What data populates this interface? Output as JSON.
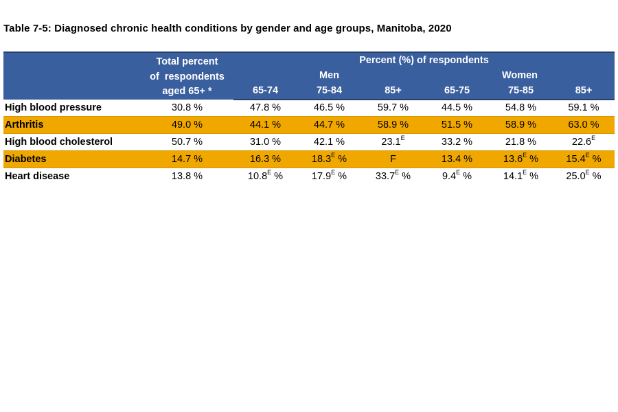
{
  "page_title": "Table 7-5: Diagnosed chronic health conditions by gender and age groups, Manitoba, 2020",
  "colors": {
    "header_blue": "#3A5F9E",
    "header_border_dark_blue": "#27416B",
    "highlight_orange": "#F0A800",
    "highlight_orange_border": "#D79600",
    "header_text": "#FFFFFF",
    "body_text": "#000000"
  },
  "table": {
    "header": {
      "total_lines": [
        "Total percent",
        "of  respondents",
        "aged 65+ *"
      ],
      "group_title": "Percent (%) of respondents",
      "men_label": "Men",
      "women_label": "Women",
      "ages": [
        "65-74",
        "75-84",
        "85+",
        "65-75",
        "75-85",
        "85+"
      ]
    },
    "rows": [
      {
        "condition": "High blood pressure",
        "highlight": false,
        "cells": [
          {
            "v": "30.8",
            "pct": true
          },
          {
            "v": "47.8",
            "pct": true
          },
          {
            "v": "46.5",
            "pct": true
          },
          {
            "v": "59.7",
            "pct": true
          },
          {
            "v": "44.5",
            "pct": true
          },
          {
            "v": "54.8",
            "pct": true
          },
          {
            "v": "59.1",
            "pct": true
          }
        ]
      },
      {
        "condition": "Arthritis",
        "highlight": true,
        "cells": [
          {
            "v": "49.0",
            "pct": true
          },
          {
            "v": "44.1",
            "pct": true
          },
          {
            "v": "44.7",
            "pct": true
          },
          {
            "v": "58.9",
            "pct": true
          },
          {
            "v": "51.5",
            "pct": true
          },
          {
            "v": "58.9",
            "pct": true
          },
          {
            "v": "63.0",
            "pct": true
          }
        ]
      },
      {
        "condition": "High blood cholesterol",
        "highlight": false,
        "cells": [
          {
            "v": "50.7",
            "pct": true
          },
          {
            "v": "31.0",
            "pct": true
          },
          {
            "v": "42.1",
            "pct": true
          },
          {
            "v": "23.1",
            "sup": "E",
            "pct": false
          },
          {
            "v": "33.2",
            "pct": true
          },
          {
            "v": "21.8",
            "pct": true
          },
          {
            "v": "22.6",
            "sup": "E",
            "pct": false
          }
        ]
      },
      {
        "condition": "Diabetes",
        "highlight": true,
        "cells": [
          {
            "v": "14.7",
            "pct": true
          },
          {
            "v": "16.3",
            "pct": true
          },
          {
            "v": "18.3",
            "sup": "E",
            "pct": true
          },
          {
            "v": "F",
            "pct": false
          },
          {
            "v": "13.4",
            "pct": true
          },
          {
            "v": "13.6",
            "sup": "E",
            "pct": true
          },
          {
            "v": "15.4",
            "sup": "E",
            "pct": true
          }
        ]
      },
      {
        "condition": "Heart disease",
        "highlight": false,
        "cells": [
          {
            "v": "13.8",
            "pct": true
          },
          {
            "v": "10.8",
            "sup": "E",
            "pct": true
          },
          {
            "v": "17.9",
            "sup": "E",
            "pct": true
          },
          {
            "v": "33.7",
            "sup": "E",
            "pct": true
          },
          {
            "v": "9.4",
            "sup": "E",
            "pct": true
          },
          {
            "v": "14.1",
            "sup": "E",
            "pct": true
          },
          {
            "v": "25.0",
            "sup": "E",
            "pct": true
          }
        ]
      }
    ]
  },
  "chart_data": {
    "type": "table",
    "title": "Table 7-5: Diagnosed chronic health conditions by gender and age groups, Manitoba, 2020",
    "columns": [
      "Condition",
      "Total percent of respondents aged 65+ *",
      "Men 65-74",
      "Men 75-84",
      "Men 85+",
      "Women 65-75",
      "Women 75-85",
      "Women 85+"
    ],
    "rows": [
      [
        "High blood pressure",
        "30.8 %",
        "47.8 %",
        "46.5 %",
        "59.7 %",
        "44.5 %",
        "54.8 %",
        "59.1 %"
      ],
      [
        "Arthritis",
        "49.0 %",
        "44.1 %",
        "44.7 %",
        "58.9 %",
        "51.5 %",
        "58.9 %",
        "63.0 %"
      ],
      [
        "High blood cholesterol",
        "50.7 %",
        "31.0 %",
        "42.1 %",
        "23.1 E",
        "33.2 %",
        "21.8 %",
        "22.6 E"
      ],
      [
        "Diabetes",
        "14.7 %",
        "16.3 %",
        "18.3 E %",
        "F",
        "13.4 %",
        "13.6 E %",
        "15.4 E %"
      ],
      [
        "Heart disease",
        "13.8 %",
        "10.8 E %",
        "17.9 E %",
        "33.7 E %",
        "9.4 E %",
        "14.1 E %",
        "25.0 E %"
      ]
    ]
  }
}
